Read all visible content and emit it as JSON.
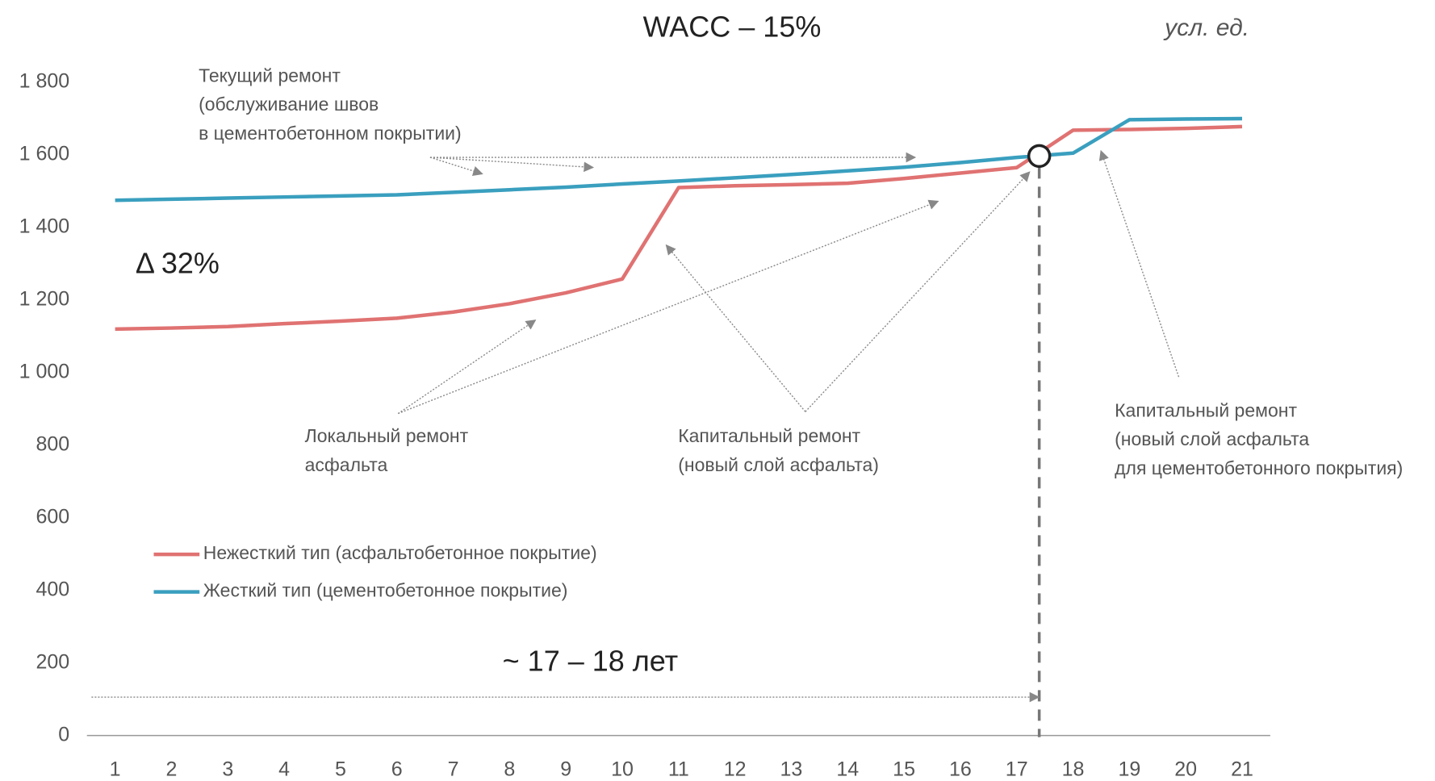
{
  "chart_data": {
    "type": "line",
    "title": "WACC – 15%",
    "unit": "усл. ед.",
    "x": [
      1,
      2,
      3,
      4,
      5,
      6,
      7,
      8,
      9,
      10,
      11,
      12,
      13,
      14,
      15,
      16,
      17,
      18,
      19,
      20,
      21
    ],
    "xlim": [
      0.5,
      21.5
    ],
    "xticks": [
      1,
      2,
      3,
      4,
      5,
      6,
      7,
      8,
      9,
      10,
      11,
      12,
      13,
      14,
      15,
      16,
      17,
      18,
      19,
      20,
      21
    ],
    "ylim": [
      0,
      1800
    ],
    "yticks": [
      0,
      200,
      400,
      600,
      800,
      {
        "value": 1000,
        "label": "1 000"
      },
      {
        "value": 1200,
        "label": "1 200"
      },
      {
        "value": 1400,
        "label": "1 400"
      },
      {
        "value": 1600,
        "label": "1 600"
      },
      {
        "value": 1800,
        "label": "1 800"
      }
    ],
    "grid": false,
    "series": [
      {
        "name": "Нежесткий тип (асфальтобетонное покрытие)",
        "color": "#e07272",
        "values": [
          1120,
          1123,
          1127,
          1135,
          1142,
          1150,
          1167,
          1190,
          1220,
          1258,
          1510,
          1515,
          1518,
          1522,
          1535,
          1550,
          1565,
          1668,
          1670,
          1673,
          1678
        ]
      },
      {
        "name": "Жесткий тип (цементобетонное покрытие)",
        "color": "#3a9fbf",
        "values": [
          1475,
          1478,
          1481,
          1484,
          1487,
          1490,
          1497,
          1504,
          1511,
          1520,
          1528,
          1537,
          1546,
          1556,
          1566,
          1579,
          1593,
          1605,
          1697,
          1699,
          1700
        ]
      }
    ],
    "crossing": {
      "x": 17.4,
      "y": 1597
    },
    "delta_label": "Δ 32%",
    "period_label": "~ 17 – 18 лет",
    "annotations": [
      {
        "text": [
          "Текущий ремонт",
          "(обслуживание швов",
          "в цементобетонном покрытии)"
        ]
      },
      {
        "text": [
          "Локальный ремонт",
          "асфальта"
        ]
      },
      {
        "text": [
          "Капитальный ремонт",
          "(новый слой асфальта)"
        ]
      },
      {
        "text": [
          "Капитальный ремонт",
          "(новый слой асфальта",
          "для цементобетонного покрытия)"
        ]
      }
    ]
  }
}
